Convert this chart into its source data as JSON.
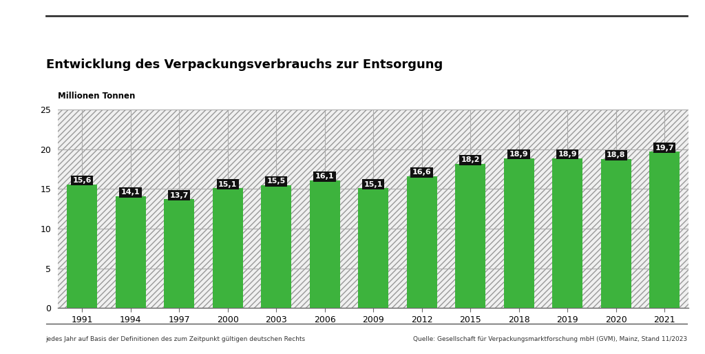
{
  "title": "Entwicklung des Verpackungsverbrauchs zur Entsorgung",
  "ylabel": "Millionen Tonnen",
  "categories": [
    "1991",
    "1994",
    "1997",
    "2000",
    "2003",
    "2006",
    "2009",
    "2012",
    "2015",
    "2018",
    "2019",
    "2020",
    "2021"
  ],
  "values": [
    15.6,
    14.1,
    13.7,
    15.1,
    15.5,
    16.1,
    15.1,
    16.6,
    18.2,
    18.9,
    18.9,
    18.8,
    19.7
  ],
  "bar_color": "#3db33d",
  "label_bg_color": "#111111",
  "label_text_color": "#ffffff",
  "ylim": [
    0,
    25
  ],
  "yticks": [
    0,
    5,
    10,
    15,
    20,
    25
  ],
  "background_color": "#ffffff",
  "plot_bg_color": "#ffffff",
  "hatch_pattern": "////",
  "hatch_bg_color": "#f0f0f0",
  "footer_left": "jedes Jahr auf Basis der Definitionen des zum Zeitpunkt gültigen deutschen Rechts",
  "footer_right": "Quelle: Gesellschaft für Verpackungsmarktforschung mbH (GVM), Mainz, Stand 11/2023",
  "top_line_color": "#555555",
  "grid_color": "#aaaaaa",
  "title_fontsize": 13,
  "axis_label_fontsize": 8.5,
  "bar_label_fontsize": 8,
  "footer_fontsize": 6.5,
  "tick_fontsize": 9,
  "bar_width": 0.62
}
